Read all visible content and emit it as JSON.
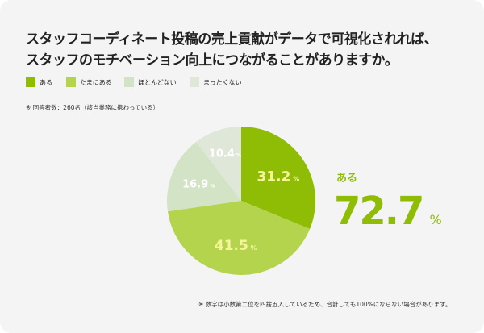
{
  "title_lines": [
    "スタッフコーディネート投稿の売上貢献がデータで可視化されれば、",
    "スタッフのモチベーション向上につながることがありますか。"
  ],
  "respondents_note": "※ 回答者数：260名（該当業務に携わっている）",
  "rounding_note": "※ 数字は小数第二位を四捨五入しているため、合計しても100%にならない場合があります。",
  "highlight": {
    "label": "ある",
    "value": "72.7",
    "unit": "%"
  },
  "chart_data": {
    "type": "pie",
    "categories": [
      "ある",
      "たまにある",
      "ほとんどない",
      "まったくない"
    ],
    "values": [
      31.2,
      41.5,
      16.9,
      10.4
    ],
    "unit": "%",
    "colors": [
      "#8fbc05",
      "#b5d44e",
      "#d3e3c5",
      "#dfe7d9"
    ],
    "label_colors": [
      "#f5f59a",
      "#f5f59a",
      "#ffffff",
      "#ffffff"
    ],
    "start": "12 o'clock, clockwise",
    "legend_position": "top-left"
  }
}
